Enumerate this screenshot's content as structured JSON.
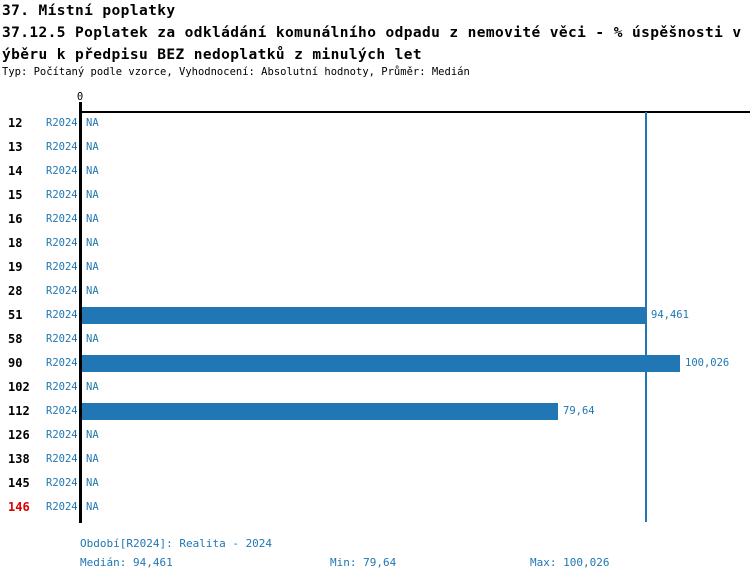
{
  "header": {
    "section": "37. Místní poplatky",
    "title_line1": "37.12.5 Poplatek za odkládání komunálního odpadu z nemovité věci - % úspěšnosti v",
    "title_line2": "ýběru k předpisu BEZ nedoplatků z minulých let",
    "meta": "Typ: Počítaný podle vzorce, Vyhodnocení: Absolutní hodnoty, Průměr: Medián"
  },
  "chart_data": {
    "type": "bar",
    "orientation": "horizontal",
    "x_axis": {
      "zero_tick_label": "0",
      "min": 0
    },
    "median_value": 94.461,
    "rows": [
      {
        "id": "12",
        "period": "R2024",
        "value": null,
        "value_label": "NA",
        "highlight": false
      },
      {
        "id": "13",
        "period": "R2024",
        "value": null,
        "value_label": "NA",
        "highlight": false
      },
      {
        "id": "14",
        "period": "R2024",
        "value": null,
        "value_label": "NA",
        "highlight": false
      },
      {
        "id": "15",
        "period": "R2024",
        "value": null,
        "value_label": "NA",
        "highlight": false
      },
      {
        "id": "16",
        "period": "R2024",
        "value": null,
        "value_label": "NA",
        "highlight": false
      },
      {
        "id": "18",
        "period": "R2024",
        "value": null,
        "value_label": "NA",
        "highlight": false
      },
      {
        "id": "19",
        "period": "R2024",
        "value": null,
        "value_label": "NA",
        "highlight": false
      },
      {
        "id": "28",
        "period": "R2024",
        "value": null,
        "value_label": "NA",
        "highlight": false
      },
      {
        "id": "51",
        "period": "R2024",
        "value": 94.461,
        "value_label": "94,461",
        "highlight": false
      },
      {
        "id": "58",
        "period": "R2024",
        "value": null,
        "value_label": "NA",
        "highlight": false
      },
      {
        "id": "90",
        "period": "R2024",
        "value": 100.026,
        "value_label": "100,026",
        "highlight": false
      },
      {
        "id": "102",
        "period": "R2024",
        "value": null,
        "value_label": "NA",
        "highlight": false
      },
      {
        "id": "112",
        "period": "R2024",
        "value": 79.64,
        "value_label": "79,64",
        "highlight": false
      },
      {
        "id": "126",
        "period": "R2024",
        "value": null,
        "value_label": "NA",
        "highlight": false
      },
      {
        "id": "138",
        "period": "R2024",
        "value": null,
        "value_label": "NA",
        "highlight": false
      },
      {
        "id": "145",
        "period": "R2024",
        "value": null,
        "value_label": "NA",
        "highlight": false
      },
      {
        "id": "146",
        "period": "R2024",
        "value": null,
        "value_label": "NA",
        "highlight": true
      }
    ]
  },
  "footer": {
    "period_info": "Období[R2024]: Realita - 2024",
    "median": "Medián: 94,461",
    "min": "Min: 79,64",
    "max": "Max: 100,026"
  },
  "colors": {
    "bar": "#2077b4",
    "blue_text": "#2077b4",
    "highlight_red": "#dd0000",
    "axis": "#000000"
  }
}
